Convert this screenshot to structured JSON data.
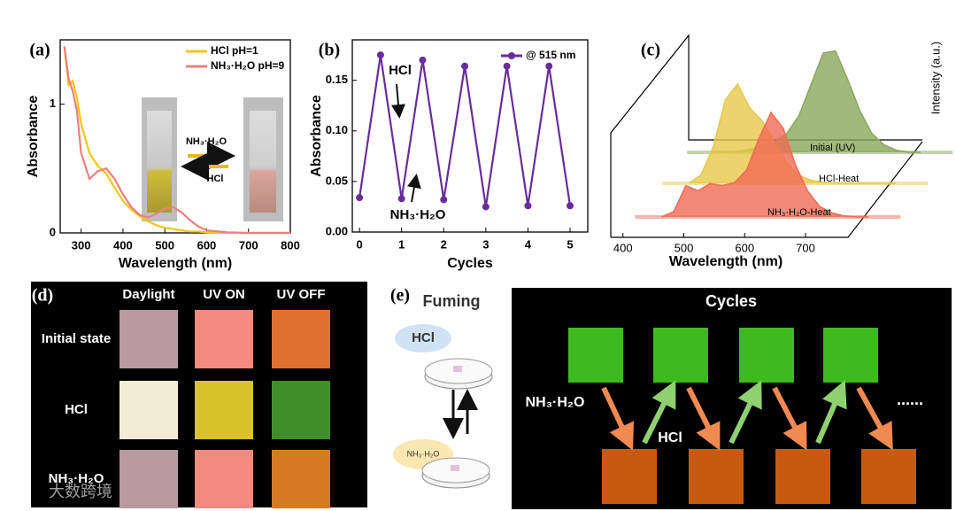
{
  "chart_data": [
    {
      "label": "(a)",
      "type": "line",
      "x": [
        260,
        270,
        280,
        290,
        300,
        320,
        340,
        360,
        380,
        400,
        420,
        440,
        460,
        480,
        500,
        520,
        540,
        560,
        580,
        600,
        650,
        700,
        800
      ],
      "series": [
        {
          "name": "HCl pH=1",
          "color": "#f5c518",
          "values": [
            1.45,
            1.15,
            1.18,
            1.05,
            0.85,
            0.62,
            0.52,
            0.46,
            0.35,
            0.25,
            0.18,
            0.13,
            0.09,
            0.06,
            0.04,
            0.03,
            0.02,
            0.01,
            0.01,
            0.005,
            0,
            0,
            0
          ]
        },
        {
          "name": "NH₃·H₂O pH=9",
          "color": "#ec7f7f",
          "values": [
            1.45,
            1.2,
            1.1,
            0.95,
            0.62,
            0.42,
            0.48,
            0.5,
            0.42,
            0.3,
            0.2,
            0.14,
            0.12,
            0.15,
            0.19,
            0.2,
            0.16,
            0.1,
            0.05,
            0.02,
            0.005,
            0,
            0
          ]
        }
      ],
      "xlabel": "Wavelength (nm)",
      "ylabel": "Absorbance",
      "xlim": [
        250,
        800
      ],
      "xticks": [
        300,
        400,
        500,
        600,
        700,
        800
      ],
      "ylim": [
        0,
        1.5
      ],
      "yticks": [
        0,
        1
      ],
      "legend": "upper right",
      "annotations": [
        "NH₃·H₂O",
        "HCl"
      ]
    },
    {
      "label": "(b)",
      "type": "line",
      "x": [
        0,
        0.5,
        1,
        1.5,
        2,
        2.5,
        3,
        3.5,
        4,
        4.5,
        5
      ],
      "series": [
        {
          "name": "@ 515 nm",
          "color": "#6a2c9c",
          "values": [
            0.034,
            0.175,
            0.033,
            0.17,
            0.032,
            0.164,
            0.025,
            0.164,
            0.026,
            0.164,
            0.026
          ]
        }
      ],
      "xlabel": "Cycles",
      "ylabel": "Absorbance",
      "xlim": [
        -0.17,
        5.42
      ],
      "xticks": [
        0,
        1,
        2,
        3,
        4,
        5
      ],
      "ylim": [
        0,
        0.19
      ],
      "yticks": [
        {
          "value": 0,
          "label": "0.00"
        },
        0.05,
        {
          "value": 0.1,
          "label": "0.10"
        },
        0.15
      ],
      "markers": true,
      "legend": "upper right",
      "annotations": [
        "HCl",
        "NH₃·H₂O"
      ]
    },
    {
      "label": "(c)",
      "type": "waterfall",
      "x": [
        440,
        460,
        480,
        500,
        520,
        540,
        560,
        580,
        600,
        620,
        640,
        660,
        680,
        700,
        720,
        740,
        760,
        780
      ],
      "series": [
        {
          "name": "Initial (UV)",
          "color": "#8aa85a",
          "values": [
            0,
            0,
            0.01,
            0.03,
            0.06,
            0.1,
            0.18,
            0.35,
            0.65,
            0.95,
            0.97,
            0.7,
            0.4,
            0.18,
            0.07,
            0.02,
            0,
            0
          ]
        },
        {
          "name": "HCl-Heat",
          "color": "#e8c84a",
          "values": [
            0,
            0.08,
            0.35,
            0.8,
            0.95,
            0.72,
            0.6,
            0.4,
            0.2,
            0.08,
            0.03,
            0.01,
            0,
            0,
            0,
            0,
            0,
            0
          ]
        },
        {
          "name": "NH₃·H₂O-Heat",
          "color": "#f06a55",
          "values": [
            0,
            0.05,
            0.3,
            0.25,
            0.32,
            0.3,
            0.33,
            0.45,
            0.75,
            1,
            0.85,
            0.5,
            0.25,
            0.1,
            0.04,
            0.01,
            0,
            0
          ]
        }
      ],
      "xlabel": "Wavelength (nm)",
      "ylabel": "Intensity (a.u.)",
      "xlim": [
        380,
        780
      ],
      "xticks": [
        400,
        500,
        600,
        700
      ]
    }
  ],
  "panel_d": {
    "label": "(d)",
    "columns": [
      "Daylight",
      "UV ON",
      "UV OFF"
    ],
    "rows": [
      "Initial state",
      "HCl",
      "NH₃·H₂O"
    ]
  },
  "panel_e": {
    "label": "(e)",
    "left_title": "Fuming",
    "right_title": "Cycles",
    "fume_labels": [
      "HCl",
      "NH₃·H₂O"
    ],
    "labels": [
      "NH₃·H₂O",
      "HCl"
    ],
    "ellipsis": "......"
  },
  "watermark": "大数跨境"
}
